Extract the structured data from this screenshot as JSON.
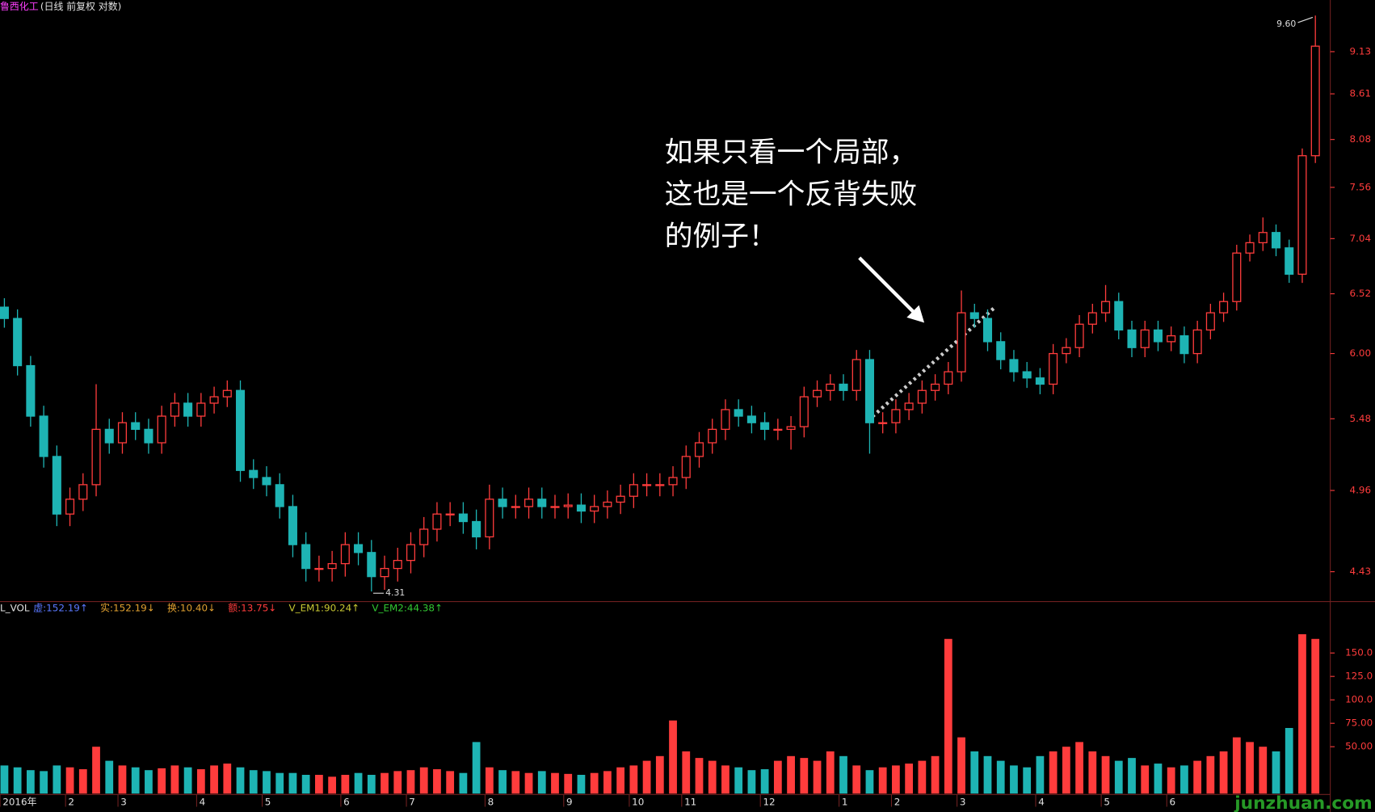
{
  "chart_data": [
    {
      "type": "candlestick",
      "title": "鲁西化工",
      "subtitle": "(日线 前复权 对数)",
      "log": true,
      "up_color": "#ff3c3c",
      "down_color": "#1eb4b4",
      "ylim": [
        4.25,
        9.81
      ],
      "yticks": [
        {
          "value": 9.13,
          "label": "9.13"
        },
        {
          "value": 8.61,
          "label": "8.61"
        },
        {
          "value": 8.08,
          "label": "8.08"
        },
        {
          "value": 7.56,
          "label": "7.56"
        },
        {
          "value": 7.04,
          "label": "7.04"
        },
        {
          "value": 6.52,
          "label": "6.52"
        },
        {
          "value": 6,
          "label": "6.00"
        },
        {
          "value": 5.48,
          "label": "5.48"
        },
        {
          "value": 4.96,
          "label": "4.96"
        },
        {
          "value": 4.43,
          "label": "4.43"
        }
      ],
      "max_label": "9.60",
      "min_label": "4.31",
      "annotation": [
        "如果只看一个局部，",
        "这也是一个反背失败",
        "的例子！"
      ],
      "open": [
        6.4,
        6.3,
        5.9,
        5.5,
        5.2,
        4.8,
        4.9,
        5.0,
        5.4,
        5.3,
        5.45,
        5.4,
        5.3,
        5.5,
        5.6,
        5.5,
        5.6,
        5.65,
        5.7,
        5.1,
        5.05,
        5.0,
        4.85,
        4.6,
        4.45,
        4.45,
        4.48,
        4.6,
        4.55,
        4.4,
        4.45,
        4.5,
        4.6,
        4.7,
        4.8,
        4.8,
        4.75,
        4.65,
        4.9,
        4.85,
        4.85,
        4.9,
        4.85,
        4.85,
        4.86,
        4.82,
        4.85,
        4.88,
        4.92,
        5.0,
        5.0,
        5.0,
        5.05,
        5.2,
        5.3,
        5.4,
        5.55,
        5.5,
        5.45,
        5.4,
        5.4,
        5.42,
        5.65,
        5.7,
        5.75,
        5.7,
        5.95,
        5.45,
        5.45,
        5.55,
        5.6,
        5.7,
        5.75,
        5.85,
        6.35,
        6.3,
        6.1,
        5.95,
        5.85,
        5.8,
        5.75,
        6.0,
        6.05,
        6.25,
        6.35,
        6.45,
        6.2,
        6.05,
        6.2,
        6.1,
        6.15,
        6.0,
        6.2,
        6.35,
        6.45,
        6.9,
        7.0,
        7.1,
        6.95,
        6.7,
        7.9
      ],
      "high": [
        6.48,
        6.38,
        5.98,
        5.58,
        5.28,
        4.98,
        5.08,
        5.75,
        5.48,
        5.53,
        5.53,
        5.48,
        5.58,
        5.68,
        5.68,
        5.68,
        5.73,
        5.78,
        5.78,
        5.18,
        5.13,
        5.08,
        4.93,
        4.68,
        4.53,
        4.56,
        4.68,
        4.68,
        4.63,
        4.53,
        4.58,
        4.68,
        4.78,
        4.88,
        4.88,
        4.88,
        4.83,
        5.0,
        4.98,
        4.93,
        4.98,
        4.98,
        4.93,
        4.94,
        4.94,
        4.93,
        4.96,
        5.0,
        5.08,
        5.08,
        5.08,
        5.13,
        5.28,
        5.38,
        5.48,
        5.63,
        5.63,
        5.58,
        5.53,
        5.48,
        5.5,
        5.73,
        5.78,
        5.83,
        5.83,
        6.03,
        6.03,
        5.53,
        5.63,
        5.68,
        5.78,
        5.83,
        5.93,
        6.55,
        6.43,
        6.38,
        6.18,
        6.03,
        5.93,
        5.88,
        6.08,
        6.13,
        6.33,
        6.43,
        6.6,
        6.53,
        6.28,
        6.28,
        6.28,
        6.23,
        6.23,
        6.28,
        6.43,
        6.53,
        6.98,
        7.08,
        7.25,
        7.18,
        7.03,
        7.98,
        9.6
      ],
      "low": [
        6.22,
        5.82,
        5.42,
        5.12,
        4.72,
        4.72,
        4.82,
        4.92,
        5.22,
        5.22,
        5.32,
        5.22,
        5.22,
        5.42,
        5.42,
        5.42,
        5.52,
        5.57,
        5.02,
        4.97,
        4.92,
        4.77,
        4.52,
        4.37,
        4.37,
        4.37,
        4.4,
        4.47,
        4.31,
        4.32,
        4.37,
        4.42,
        4.52,
        4.62,
        4.72,
        4.67,
        4.57,
        4.57,
        4.77,
        4.77,
        4.77,
        4.77,
        4.77,
        4.77,
        4.74,
        4.74,
        4.77,
        4.8,
        4.84,
        4.92,
        4.92,
        4.92,
        4.97,
        5.12,
        5.22,
        5.32,
        5.42,
        5.37,
        5.32,
        5.32,
        5.25,
        5.34,
        5.57,
        5.62,
        5.62,
        5.62,
        5.22,
        5.37,
        5.37,
        5.47,
        5.52,
        5.62,
        5.67,
        5.77,
        6.22,
        6.02,
        5.87,
        5.77,
        5.72,
        5.67,
        5.67,
        5.92,
        5.97,
        6.17,
        6.27,
        6.12,
        5.97,
        5.97,
        6.02,
        6.02,
        5.92,
        5.92,
        6.12,
        6.27,
        6.37,
        6.82,
        6.92,
        6.87,
        6.62,
        6.62,
        7.82
      ],
      "close": [
        6.3,
        5.9,
        5.5,
        5.2,
        4.8,
        4.9,
        5.0,
        5.4,
        5.3,
        5.45,
        5.4,
        5.3,
        5.5,
        5.6,
        5.5,
        5.6,
        5.65,
        5.7,
        5.1,
        5.05,
        5.0,
        4.85,
        4.6,
        4.45,
        4.45,
        4.48,
        4.6,
        4.55,
        4.4,
        4.45,
        4.5,
        4.6,
        4.7,
        4.8,
        4.8,
        4.75,
        4.65,
        4.9,
        4.85,
        4.85,
        4.9,
        4.85,
        4.85,
        4.86,
        4.82,
        4.85,
        4.88,
        4.92,
        5.0,
        5.0,
        5.0,
        5.05,
        5.2,
        5.3,
        5.4,
        5.55,
        5.5,
        5.45,
        5.4,
        5.4,
        5.42,
        5.65,
        5.7,
        5.75,
        5.7,
        5.95,
        5.45,
        5.45,
        5.55,
        5.6,
        5.7,
        5.75,
        5.85,
        6.35,
        6.3,
        6.1,
        5.95,
        5.85,
        5.8,
        5.75,
        6.0,
        6.05,
        6.25,
        6.35,
        6.45,
        6.2,
        6.05,
        6.2,
        6.1,
        6.15,
        6.0,
        6.2,
        6.35,
        6.45,
        6.9,
        7.0,
        7.1,
        6.95,
        6.7,
        7.9,
        9.2
      ],
      "xtick_labels": [
        {
          "index": 0,
          "label": "2016年"
        },
        {
          "index": 5,
          "label": "2"
        },
        {
          "index": 9,
          "label": "3"
        },
        {
          "index": 15,
          "label": "4"
        },
        {
          "index": 20,
          "label": "5"
        },
        {
          "index": 26,
          "label": "6"
        },
        {
          "index": 31,
          "label": "7"
        },
        {
          "index": 37,
          "label": "8"
        },
        {
          "index": 43,
          "label": "9"
        },
        {
          "index": 48,
          "label": "10"
        },
        {
          "index": 52,
          "label": "11"
        },
        {
          "index": 58,
          "label": "12"
        },
        {
          "index": 64,
          "label": "1"
        },
        {
          "index": 68,
          "label": "2"
        },
        {
          "index": 73,
          "label": "3"
        },
        {
          "index": 79,
          "label": "4"
        },
        {
          "index": 84,
          "label": "5"
        },
        {
          "index": 89,
          "label": "6"
        }
      ],
      "watermark": "junzhuan.com"
    },
    {
      "type": "volume",
      "title": "L_VOL",
      "legend": [
        {
          "text": "虚:152.19↑",
          "color": "#5a78ff"
        },
        {
          "text": "实:152.19↓",
          "color": "#e0a030"
        },
        {
          "text": "换:10.40↓",
          "color": "#e0a030"
        },
        {
          "text": "额:13.75↓",
          "color": "#ff3c3c"
        },
        {
          "text": "V_EM1:90.24↑",
          "color": "#c8c832"
        },
        {
          "text": "V_EM2:44.38↑",
          "color": "#32c832"
        }
      ],
      "ylim": [
        0,
        203
      ],
      "yticks": [
        {
          "value": 150,
          "label": "150.0"
        },
        {
          "value": 125,
          "label": "125.0"
        },
        {
          "value": 100,
          "label": "100.0"
        },
        {
          "value": 75,
          "label": "75.00"
        },
        {
          "value": 50,
          "label": "50.00"
        }
      ],
      "values": [
        30,
        28,
        25,
        24,
        30,
        28,
        26,
        50,
        35,
        30,
        28,
        25,
        27,
        30,
        28,
        26,
        30,
        32,
        28,
        25,
        24,
        22,
        22,
        20,
        20,
        18,
        20,
        22,
        20,
        22,
        24,
        25,
        28,
        26,
        24,
        22,
        55,
        28,
        25,
        24,
        22,
        24,
        22,
        21,
        20,
        22,
        24,
        28,
        30,
        35,
        40,
        78,
        45,
        38,
        35,
        30,
        28,
        25,
        26,
        35,
        40,
        38,
        35,
        45,
        40,
        30,
        25,
        28,
        30,
        32,
        35,
        40,
        165,
        60,
        45,
        40,
        35,
        30,
        28,
        40,
        45,
        50,
        55,
        45,
        40,
        35,
        38,
        30,
        32,
        28,
        30,
        35,
        40,
        45,
        60,
        55,
        50,
        45,
        70,
        170,
        165
      ]
    }
  ]
}
